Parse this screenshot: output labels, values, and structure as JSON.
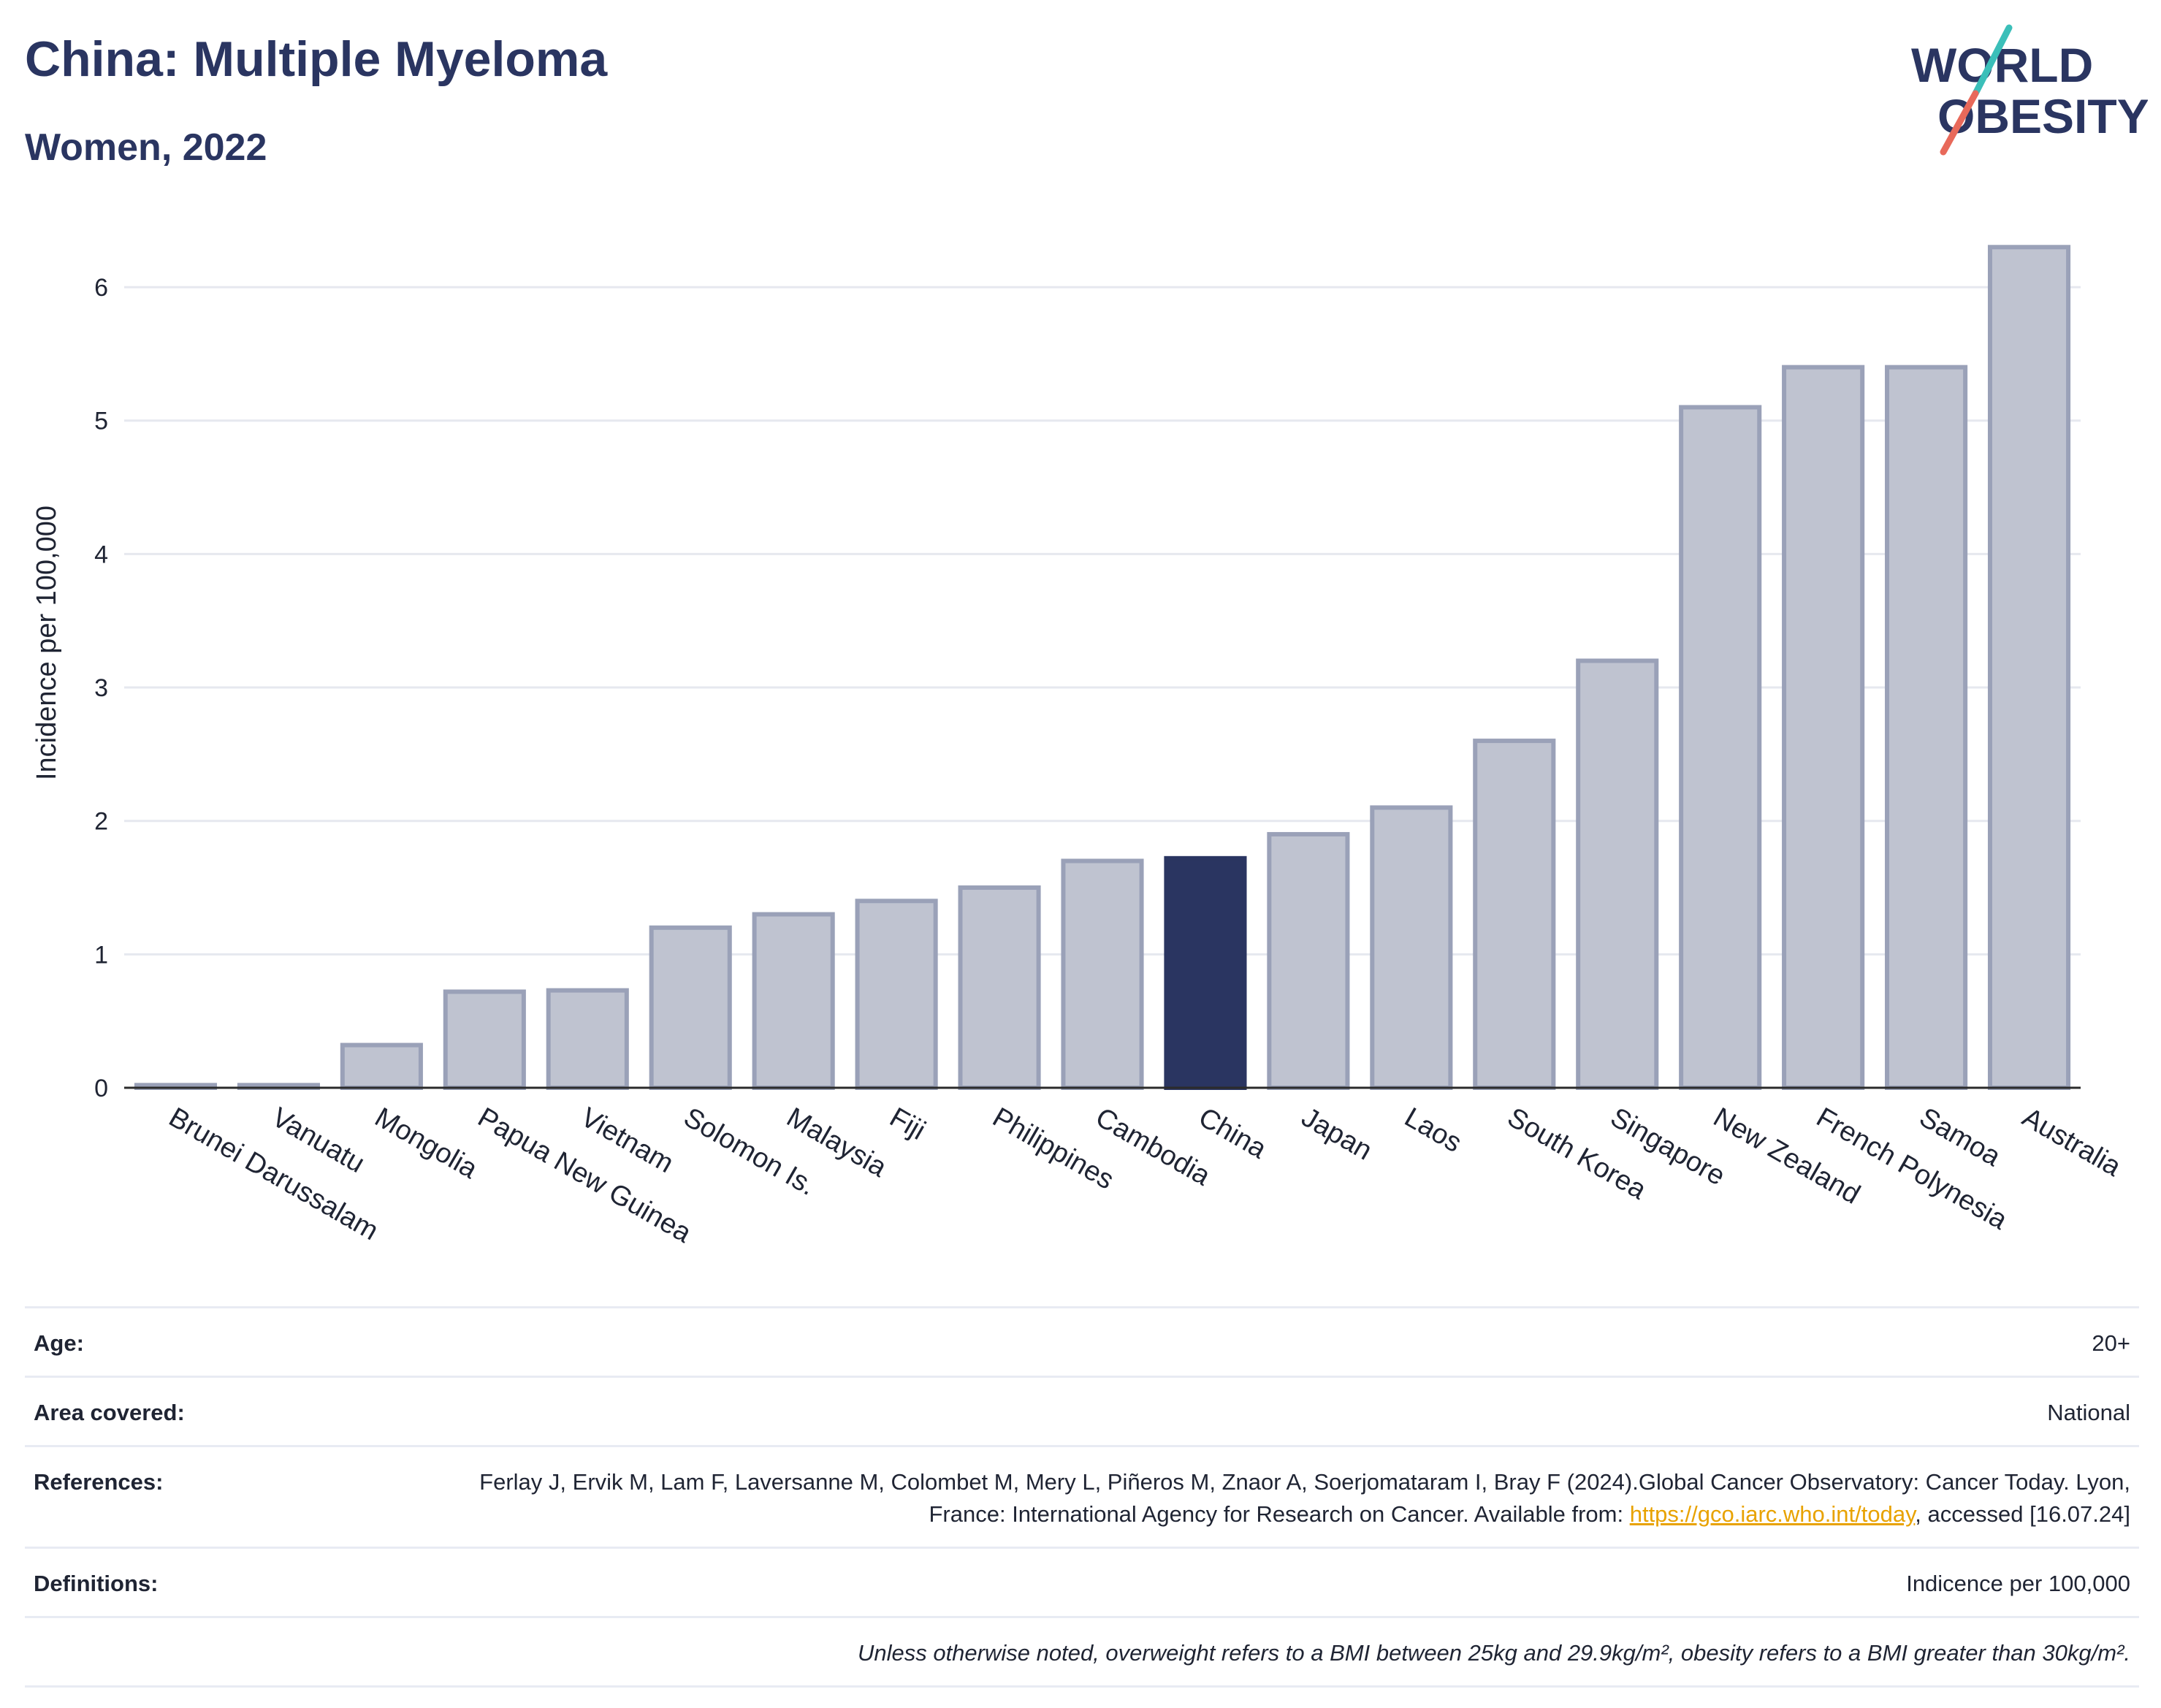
{
  "header": {
    "title": "China: Multiple Myeloma",
    "subtitle": "Women, 2022"
  },
  "logo": {
    "line1": "WORLD",
    "line2": "OBESITY",
    "accent_teal": "#3bbfb9",
    "accent_coral": "#e8695a",
    "text_color": "#2a3561"
  },
  "chart_data": {
    "type": "bar",
    "ylabel": "Incidence per 100,000",
    "ylim": [
      0,
      6.4
    ],
    "yticks": [
      0,
      1,
      2,
      3,
      4,
      5,
      6
    ],
    "grid": true,
    "highlight": "China",
    "colors": {
      "bar": "#bfc3d0",
      "bar_edge": "#9aa1b8",
      "highlight": "#2a3561"
    },
    "categories": [
      "Brunei Darussalam",
      "Vanuatu",
      "Mongolia",
      "Papua New Guinea",
      "Vietnam",
      "Solomon Is.",
      "Malaysia",
      "Fiji",
      "Philippines",
      "Cambodia",
      "China",
      "Japan",
      "Laos",
      "South Korea",
      "Singapore",
      "New Zealand",
      "French Polynesia",
      "Samoa",
      "Australia"
    ],
    "values": [
      0.02,
      0.02,
      0.32,
      0.72,
      0.73,
      1.2,
      1.3,
      1.4,
      1.5,
      1.7,
      1.72,
      1.9,
      2.1,
      2.6,
      3.2,
      5.1,
      5.4,
      5.4,
      6.3
    ]
  },
  "meta": {
    "age_label": "Age:",
    "age_value": "20+",
    "area_label": "Area covered:",
    "area_value": "National",
    "references_label": "References:",
    "references_text1": "Ferlay J, Ervik M, Lam F, Laversanne M, Colombet M, Mery L, Piñeros M, Znaor A, Soerjomataram I, Bray F (2024).Global Cancer Observatory: Cancer Today. Lyon, France: International Agency for Research on Cancer. Available from: ",
    "references_link": "https://gco.iarc.who.int/today",
    "references_text2": ", accessed [16.07.24]",
    "definitions_label": "Definitions:",
    "definitions_value": "Indicence per 100,000",
    "note": "Unless otherwise noted, overweight refers to a BMI between 25kg and 29.9kg/m², obesity refers to a BMI greater than 30kg/m²."
  }
}
